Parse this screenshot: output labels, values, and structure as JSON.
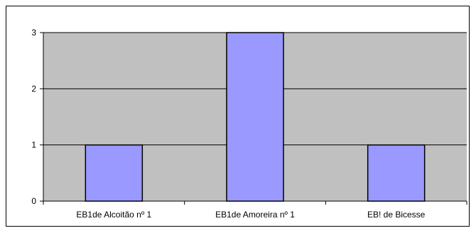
{
  "chart_data": {
    "type": "bar",
    "title": "",
    "xlabel": "",
    "ylabel": "",
    "categories": [
      "EB1de Alcoitão nº 1",
      "EB1de Amoreira nº 1",
      "EB! de Bicesse"
    ],
    "values": [
      1,
      3,
      1
    ],
    "ylim": [
      0,
      3
    ],
    "yticks": [
      0,
      1,
      2,
      3
    ],
    "grid": true,
    "legend": "none",
    "colors": {
      "plot_background": "#c0c0c0",
      "bar_fill": "#9999ff",
      "bar_stroke": "#000000",
      "gridline": "#000000"
    }
  }
}
